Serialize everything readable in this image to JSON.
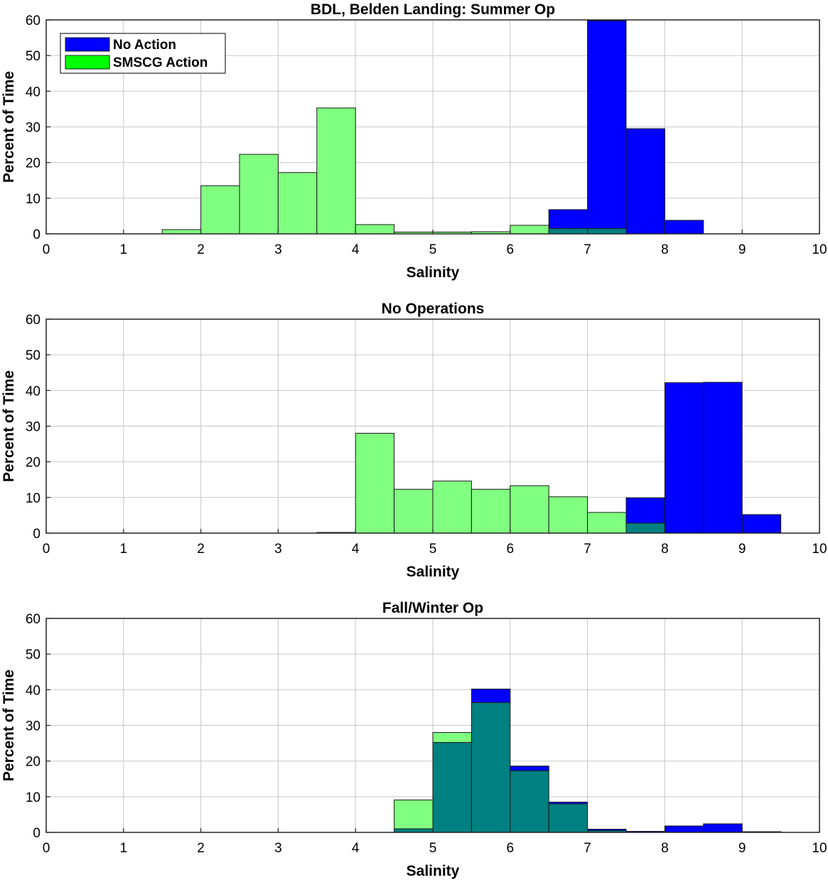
{
  "chart_data": [
    {
      "type": "bar",
      "title": "BDL, Belden Landing: Summer Op",
      "xlabel": "Salinity",
      "ylabel": "Percent of Time",
      "xlim": [
        0,
        10
      ],
      "ylim": [
        0,
        60
      ],
      "xticks": [
        "0",
        "1",
        "2",
        "3",
        "4",
        "5",
        "6",
        "7",
        "8",
        "9",
        "10"
      ],
      "yticks": [
        "0",
        "10",
        "20",
        "30",
        "40",
        "50",
        "60"
      ],
      "bin_edges": [
        0,
        0.5,
        1,
        1.5,
        2,
        2.5,
        3,
        3.5,
        4,
        4.5,
        5,
        5.5,
        6,
        6.5,
        7,
        7.5,
        8,
        8.5,
        9,
        9.5,
        10
      ],
      "grid": true,
      "legend": {
        "position": "top-left",
        "entries": [
          {
            "label": "No Action",
            "color": "#0000ff"
          },
          {
            "label": "SMSCG Action",
            "color": "#00ff00"
          }
        ]
      },
      "series": [
        {
          "name": "No Action",
          "color": "#0000ff",
          "values": [
            0,
            0,
            0,
            0,
            0,
            0,
            0,
            0,
            0,
            0,
            0,
            0,
            0,
            6.8,
            59.8,
            29.5,
            3.8,
            0,
            0,
            0
          ]
        },
        {
          "name": "SMSCG Action",
          "color": "#00ff00",
          "values": [
            0,
            0,
            0,
            1.2,
            13.5,
            22.3,
            17.2,
            35.3,
            2.6,
            0.5,
            0.5,
            0.6,
            2.4,
            1.5,
            1.5,
            0,
            0,
            0,
            0,
            0
          ]
        }
      ]
    },
    {
      "type": "bar",
      "title": "No Operations",
      "xlabel": "Salinity",
      "ylabel": "Percent of Time",
      "xlim": [
        0,
        10
      ],
      "ylim": [
        0,
        60
      ],
      "xticks": [
        "0",
        "1",
        "2",
        "3",
        "4",
        "5",
        "6",
        "7",
        "8",
        "9",
        "10"
      ],
      "yticks": [
        "0",
        "10",
        "20",
        "30",
        "40",
        "50",
        "60"
      ],
      "bin_edges": [
        0,
        0.5,
        1,
        1.5,
        2,
        2.5,
        3,
        3.5,
        4,
        4.5,
        5,
        5.5,
        6,
        6.5,
        7,
        7.5,
        8,
        8.5,
        9,
        9.5,
        10
      ],
      "grid": true,
      "series": [
        {
          "name": "No Action",
          "color": "#0000ff",
          "values": [
            0,
            0,
            0,
            0,
            0,
            0,
            0,
            0,
            0,
            0,
            0,
            0,
            0,
            0,
            0,
            9.9,
            42.2,
            42.3,
            5.2,
            0
          ]
        },
        {
          "name": "SMSCG Action",
          "color": "#00ff00",
          "values": [
            0,
            0,
            0,
            0,
            0,
            0,
            0,
            0.2,
            28.0,
            12.3,
            14.6,
            12.3,
            13.3,
            10.2,
            5.8,
            2.8,
            0,
            0,
            0,
            0
          ]
        }
      ]
    },
    {
      "type": "bar",
      "title": "Fall/Winter Op",
      "xlabel": "Salinity",
      "ylabel": "Percent of Time",
      "xlim": [
        0,
        10
      ],
      "ylim": [
        0,
        60
      ],
      "xticks": [
        "0",
        "1",
        "2",
        "3",
        "4",
        "5",
        "6",
        "7",
        "8",
        "9",
        "10"
      ],
      "yticks": [
        "0",
        "10",
        "20",
        "30",
        "40",
        "50",
        "60"
      ],
      "bin_edges": [
        0,
        0.5,
        1,
        1.5,
        2,
        2.5,
        3,
        3.5,
        4,
        4.5,
        5,
        5.5,
        6,
        6.5,
        7,
        7.5,
        8,
        8.5,
        9,
        9.5,
        10
      ],
      "grid": true,
      "series": [
        {
          "name": "No Action",
          "color": "#0000ff",
          "values": [
            0,
            0,
            0,
            0,
            0,
            0,
            0,
            0,
            0,
            1.0,
            25.2,
            40.2,
            18.6,
            8.5,
            0.9,
            0.3,
            1.8,
            2.4,
            0.2,
            0
          ]
        },
        {
          "name": "SMSCG Action",
          "color": "#00ff00",
          "values": [
            0,
            0,
            0,
            0,
            0,
            0,
            0,
            0,
            0,
            9.1,
            28.0,
            36.4,
            17.3,
            8.0,
            0.5,
            0,
            0,
            0,
            0,
            0
          ]
        }
      ]
    }
  ]
}
